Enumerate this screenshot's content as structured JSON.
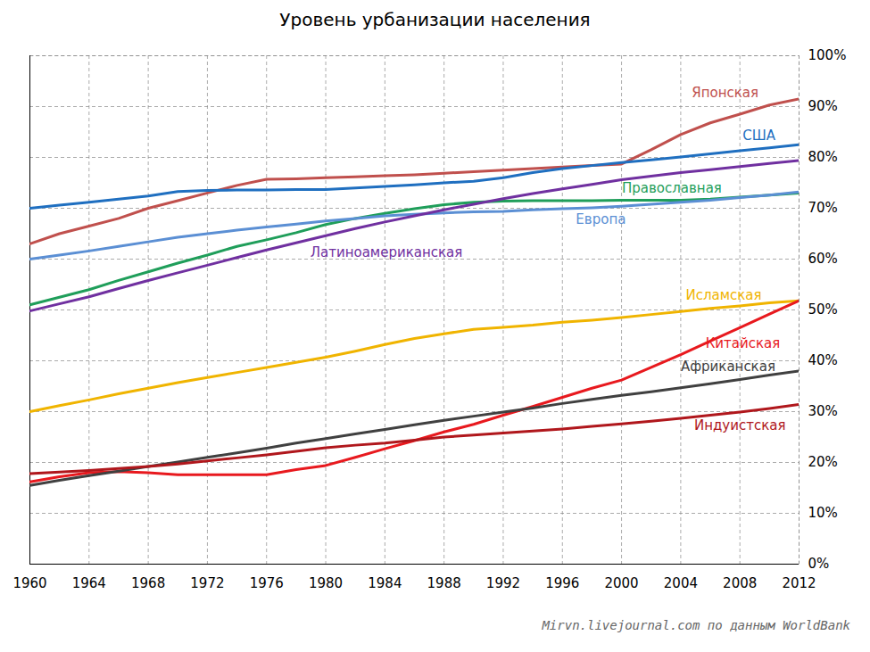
{
  "chart_data": {
    "type": "line",
    "title": "Уровень урбанизации населения",
    "caption": "Mirvn.livejournal.com по данным WorldBank",
    "x": [
      1960,
      1962,
      1964,
      1966,
      1968,
      1970,
      1972,
      1974,
      1976,
      1978,
      1980,
      1982,
      1984,
      1986,
      1988,
      1990,
      1992,
      1994,
      1996,
      1998,
      2000,
      2002,
      2004,
      2006,
      2008,
      2010,
      2012
    ],
    "xlim": [
      1960,
      2012
    ],
    "xticks": [
      1960,
      1964,
      1968,
      1972,
      1976,
      1980,
      1984,
      1988,
      1992,
      1996,
      2000,
      2004,
      2008,
      2012
    ],
    "ylim": [
      0,
      100
    ],
    "yticks": [
      {
        "value": 0,
        "label": "0%"
      },
      {
        "value": 10,
        "label": "10%"
      },
      {
        "value": 20,
        "label": "20%"
      },
      {
        "value": 30,
        "label": "30%"
      },
      {
        "value": 40,
        "label": "40%"
      },
      {
        "value": 50,
        "label": "50%"
      },
      {
        "value": 60,
        "label": "60%"
      },
      {
        "value": 70,
        "label": "70%"
      },
      {
        "value": 80,
        "label": "80%"
      },
      {
        "value": 90,
        "label": "90%"
      },
      {
        "value": 100,
        "label": "100%"
      }
    ],
    "grid": true,
    "series": [
      {
        "name": "Японская",
        "color": "#c0504d",
        "values": [
          63,
          65,
          66.5,
          68,
          70,
          71.5,
          73,
          74.5,
          75.7,
          75.8,
          76,
          76.2,
          76.4,
          76.6,
          76.9,
          77.2,
          77.5,
          77.8,
          78.1,
          78.4,
          78.7,
          81.5,
          84.5,
          86.8,
          88.5,
          90.3,
          91.5
        ]
      },
      {
        "name": "США",
        "color": "#1f6fc0",
        "values": [
          70,
          70.6,
          71.2,
          71.8,
          72.4,
          73.3,
          73.5,
          73.6,
          73.6,
          73.7,
          73.7,
          74,
          74.3,
          74.6,
          75,
          75.3,
          76,
          77,
          77.8,
          78.4,
          79,
          79.5,
          80.1,
          80.7,
          81.3,
          81.9,
          82.5
        ]
      },
      {
        "name": "Православная",
        "color": "#1f9e5a",
        "values": [
          51,
          52.5,
          54,
          55.8,
          57.5,
          59.2,
          60.8,
          62.5,
          63.8,
          65.2,
          66.8,
          68,
          69,
          69.9,
          70.7,
          71.2,
          71.4,
          71.5,
          71.5,
          71.5,
          71.6,
          71.6,
          71.6,
          71.8,
          72.2,
          72.6,
          73
        ]
      },
      {
        "name": "Европа",
        "color": "#5b8fd4",
        "values": [
          60,
          60.8,
          61.6,
          62.5,
          63.4,
          64.3,
          65,
          65.7,
          66.3,
          66.9,
          67.5,
          68,
          68.5,
          68.8,
          69.1,
          69.3,
          69.4,
          69.7,
          69.9,
          70.1,
          70.4,
          70.8,
          71.2,
          71.6,
          72.1,
          72.6,
          73.2
        ]
      },
      {
        "name": "Латиноамериканская",
        "color": "#7030a0",
        "values": [
          49.8,
          51.2,
          52.6,
          54.2,
          55.8,
          57.3,
          58.8,
          60.3,
          61.8,
          63.2,
          64.6,
          66,
          67.3,
          68.5,
          69.7,
          70.8,
          71.9,
          72.9,
          73.8,
          74.7,
          75.6,
          76.3,
          77,
          77.6,
          78.2,
          78.8,
          79.4
        ]
      },
      {
        "name": "Исламская",
        "color": "#f0b400",
        "values": [
          30,
          31.2,
          32.3,
          33.5,
          34.6,
          35.7,
          36.7,
          37.7,
          38.7,
          39.7,
          40.7,
          41.9,
          43.2,
          44.4,
          45.3,
          46.2,
          46.6,
          47,
          47.6,
          48,
          48.5,
          49.1,
          49.7,
          50.3,
          50.8,
          51.4,
          51.8
        ]
      },
      {
        "name": "Китайская",
        "color": "#e8191e",
        "values": [
          16.2,
          17.2,
          18,
          18.2,
          18,
          17.6,
          17.6,
          17.6,
          17.6,
          18.6,
          19.4,
          21,
          22.7,
          24.3,
          26,
          27.5,
          29.3,
          31,
          32.8,
          34.6,
          36.2,
          38.7,
          41.2,
          43.9,
          46.5,
          49.2,
          51.8
        ]
      },
      {
        "name": "Африканская",
        "color": "#404040",
        "values": [
          15.5,
          16.5,
          17.4,
          18.3,
          19.2,
          20.1,
          21,
          21.9,
          22.8,
          23.8,
          24.7,
          25.6,
          26.5,
          27.4,
          28.3,
          29.1,
          29.9,
          30.7,
          31.6,
          32.4,
          33.2,
          33.9,
          34.7,
          35.5,
          36.3,
          37.2,
          38
        ]
      },
      {
        "name": "Индуистская",
        "color": "#b0171c",
        "values": [
          17.8,
          18.1,
          18.4,
          18.8,
          19.2,
          19.7,
          20.3,
          20.9,
          21.5,
          22.2,
          22.9,
          23.4,
          23.8,
          24.4,
          25,
          25.4,
          25.8,
          26.2,
          26.6,
          27.1,
          27.6,
          28.1,
          28.7,
          29.3,
          29.9,
          30.6,
          31.4
        ]
      }
    ]
  }
}
